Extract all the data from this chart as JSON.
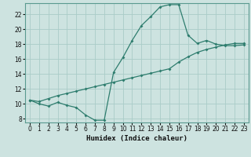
{
  "xlabel": "Humidex (Indice chaleur)",
  "bg_color": "#cde3e0",
  "line_color": "#2e7d6e",
  "grid_color": "#aaccc8",
  "xlim": [
    -0.5,
    23.5
  ],
  "ylim": [
    7.5,
    23.5
  ],
  "xticks": [
    0,
    1,
    2,
    3,
    4,
    5,
    6,
    7,
    8,
    9,
    10,
    11,
    12,
    13,
    14,
    15,
    16,
    17,
    18,
    19,
    20,
    21,
    22,
    23
  ],
  "yticks": [
    8,
    10,
    12,
    14,
    16,
    18,
    20,
    22
  ],
  "line1_x": [
    0,
    1,
    2,
    3,
    4,
    5,
    6,
    7,
    8,
    9,
    10,
    11,
    12,
    13,
    14,
    15,
    16,
    17,
    18,
    19,
    20,
    21,
    22,
    23
  ],
  "line1_y": [
    10.5,
    10.0,
    9.7,
    10.2,
    9.8,
    9.5,
    8.5,
    7.8,
    7.8,
    14.2,
    16.2,
    18.5,
    20.5,
    21.7,
    23.0,
    23.3,
    23.3,
    19.2,
    18.1,
    18.5,
    18.0,
    17.8,
    17.8,
    17.9
  ],
  "line2_x": [
    0,
    1,
    2,
    3,
    4,
    5,
    6,
    7,
    8,
    9,
    10,
    11,
    12,
    13,
    14,
    15,
    16,
    17,
    18,
    19,
    20,
    21,
    22,
    23
  ],
  "line2_y": [
    10.5,
    10.3,
    10.7,
    11.1,
    11.4,
    11.7,
    12.0,
    12.3,
    12.6,
    12.9,
    13.2,
    13.5,
    13.8,
    14.1,
    14.4,
    14.7,
    15.6,
    16.3,
    16.9,
    17.3,
    17.6,
    17.9,
    18.1,
    18.1
  ]
}
